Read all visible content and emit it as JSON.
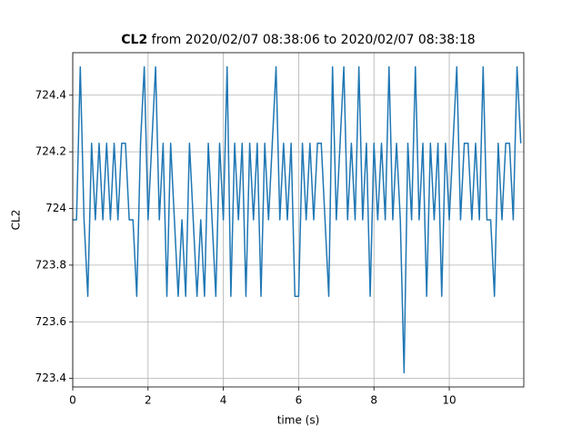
{
  "chart_data": {
    "type": "line",
    "title": "CL2",
    "subtitle": "from 2020/02/07 08:38:06 to 2020/02/07 08:38:18",
    "xlabel": "time (s)",
    "ylabel": "CL2",
    "x": [
      0.0,
      0.1,
      0.2,
      0.3,
      0.4,
      0.5,
      0.6,
      0.7,
      0.8,
      0.9,
      1.0,
      1.1,
      1.2,
      1.3,
      1.4,
      1.5,
      1.6,
      1.7,
      1.8,
      1.9,
      2.0,
      2.1,
      2.2,
      2.3,
      2.4,
      2.5,
      2.6,
      2.7,
      2.8,
      2.9,
      3.0,
      3.1,
      3.2,
      3.3,
      3.4,
      3.5,
      3.6,
      3.7,
      3.8,
      3.9,
      4.0,
      4.1,
      4.2,
      4.3,
      4.4,
      4.5,
      4.6,
      4.7,
      4.8,
      4.9,
      5.0,
      5.1,
      5.2,
      5.3,
      5.4,
      5.5,
      5.6,
      5.7,
      5.8,
      5.9,
      6.0,
      6.1,
      6.2,
      6.3,
      6.4,
      6.5,
      6.6,
      6.7,
      6.8,
      6.9,
      7.0,
      7.1,
      7.2,
      7.3,
      7.4,
      7.5,
      7.6,
      7.7,
      7.8,
      7.9,
      8.0,
      8.1,
      8.2,
      8.3,
      8.4,
      8.5,
      8.6,
      8.7,
      8.8,
      8.9,
      9.0,
      9.1,
      9.2,
      9.3,
      9.4,
      9.5,
      9.6,
      9.7,
      9.8,
      9.9,
      10.0,
      10.1,
      10.2,
      10.3,
      10.4,
      10.5,
      10.6,
      10.7,
      10.8,
      10.9,
      11.0,
      11.1,
      11.2,
      11.3,
      11.4,
      11.5,
      11.6,
      11.7,
      11.8,
      11.9
    ],
    "series": [
      {
        "name": "CL2",
        "color": "#1f77b4",
        "values": [
          723.96,
          723.96,
          724.5,
          723.96,
          723.69,
          724.23,
          723.96,
          724.23,
          723.96,
          724.23,
          723.96,
          724.23,
          723.96,
          724.23,
          724.23,
          723.96,
          723.96,
          723.69,
          724.23,
          724.5,
          723.96,
          724.23,
          724.5,
          723.96,
          724.23,
          723.69,
          724.23,
          723.96,
          723.69,
          723.96,
          723.69,
          724.23,
          723.96,
          723.69,
          723.96,
          723.69,
          724.23,
          723.96,
          723.69,
          724.23,
          723.96,
          724.5,
          723.69,
          724.23,
          723.96,
          724.23,
          723.69,
          724.23,
          723.96,
          724.23,
          723.69,
          724.23,
          723.96,
          724.23,
          724.5,
          723.96,
          724.23,
          723.96,
          724.23,
          723.69,
          723.69,
          724.23,
          723.96,
          724.23,
          723.96,
          724.23,
          724.23,
          723.96,
          723.69,
          724.5,
          723.96,
          724.23,
          724.5,
          723.96,
          724.23,
          723.96,
          724.5,
          723.96,
          724.23,
          723.69,
          724.23,
          723.96,
          724.23,
          723.96,
          724.5,
          723.96,
          724.23,
          723.96,
          723.42,
          724.23,
          723.96,
          724.5,
          723.96,
          724.23,
          723.69,
          724.23,
          723.96,
          724.23,
          723.69,
          724.23,
          723.96,
          724.23,
          724.5,
          723.96,
          724.23,
          724.23,
          723.96,
          724.23,
          723.96,
          724.5,
          723.96,
          723.96,
          723.69,
          724.23,
          723.96,
          724.23,
          724.23,
          723.96,
          724.5,
          724.23
        ]
      }
    ],
    "xlim": [
      0,
      11.98
    ],
    "xticks": [
      0,
      2,
      4,
      6,
      8,
      10
    ],
    "ylim": [
      723.37,
      724.55
    ],
    "yticks": [
      723.4,
      723.6,
      723.8,
      724.0,
      724.2,
      724.4
    ],
    "grid": true
  }
}
